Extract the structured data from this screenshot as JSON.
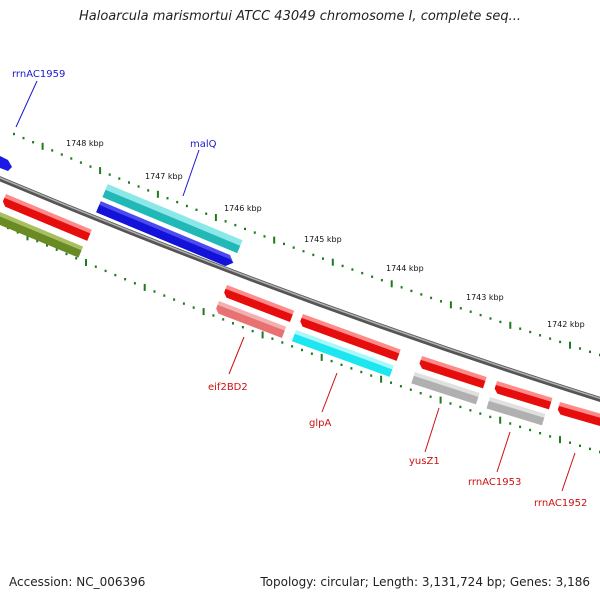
{
  "title": "Haloarcula marismortui ATCC 43049 chromosome I, complete seq...",
  "footer": {
    "accession": "Accession: NC_006396",
    "topology": "Topology: circular; Length: 3,131,724 bp; Genes: 3,186"
  },
  "ticks": [
    "1748 kbp",
    "1747 kbp",
    "1746 kbp",
    "1745 kbp",
    "1744 kbp",
    "1743 kbp",
    "1742 kbp"
  ],
  "labels": {
    "rrnAC1959": "rrnAC1959",
    "malQ": "malQ",
    "eif2BD2": "eif2BD2",
    "glpA": "glpA",
    "yusZ1": "yusZ1",
    "rrnAC1953": "rrnAC1953",
    "rrnAC1952": "rrnAC1952"
  },
  "colors": {
    "backbone": "#8a8a8a",
    "tick": "#1d7a1d",
    "forward_label": "#1a1acc",
    "reverse_label": "#cc1111",
    "blue": "#1a1ae6",
    "cyan": "#22c8c8",
    "bright_cyan": "#1ee6f0",
    "red": "#e60d0d",
    "pink": "#e87272",
    "olive": "#6a8a24",
    "grey": "#b8b8b8"
  }
}
